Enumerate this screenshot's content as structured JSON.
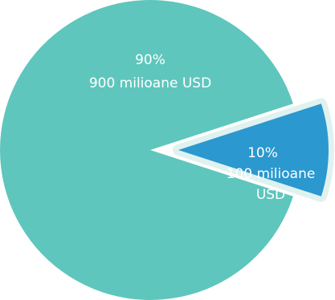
{
  "chart_data": {
    "type": "pie",
    "title": "",
    "legend": "none",
    "exploded_slice": 1,
    "slices": [
      {
        "percent_label": "90%",
        "value_label": [
          "900 milioane USD"
        ],
        "value": 90,
        "color": "#5ec6bd"
      },
      {
        "percent_label": "10%",
        "value_label": [
          "100 milioane",
          "USD"
        ],
        "value": 10,
        "color": "#2b98cf",
        "edge_color": "#dff2f0"
      }
    ]
  }
}
